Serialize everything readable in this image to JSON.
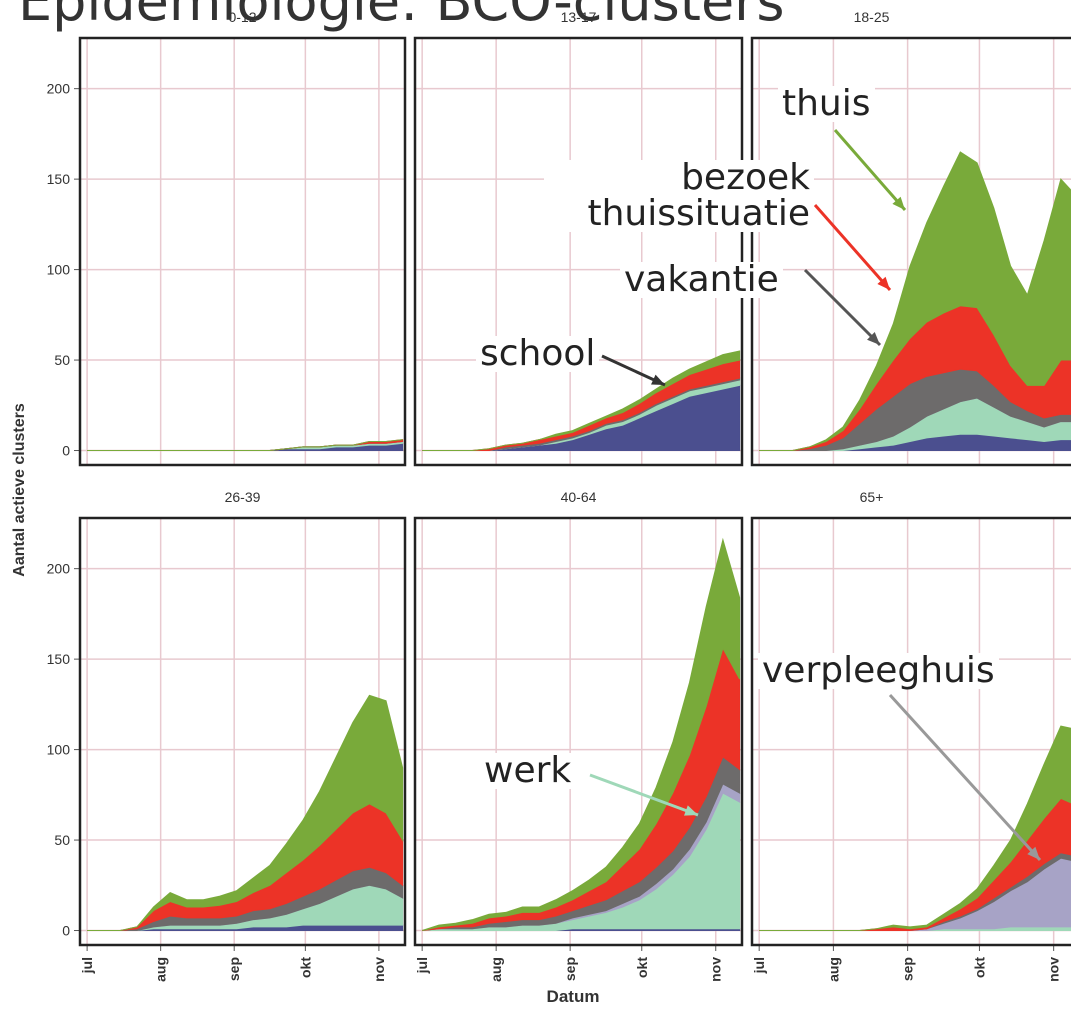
{
  "title": "Epidemiologie: BCO-clusters",
  "x_label": "Datum",
  "y_label": "Aantal actieve clusters",
  "chart_data": [
    {
      "type": "area",
      "title": "0-12",
      "x": [
        0,
        7,
        14,
        21,
        28,
        35,
        42,
        49,
        56,
        63,
        70,
        77,
        84,
        91,
        98,
        105,
        112,
        119,
        126,
        133
      ],
      "xlim": [
        -3,
        134
      ],
      "ylim": [
        -8,
        228
      ],
      "xticks": [
        0,
        31,
        62,
        92,
        123
      ],
      "yticks": [
        0,
        50,
        100,
        150,
        200
      ],
      "series": [
        {
          "name": "school",
          "color": "#4b4f8f",
          "values": [
            0,
            0,
            0,
            0,
            0,
            0,
            0,
            0,
            0,
            0,
            0,
            0,
            1,
            1,
            1,
            2,
            2,
            3,
            3,
            4
          ]
        },
        {
          "name": "werk",
          "color": "#9fd8b8",
          "values": [
            0,
            0,
            0,
            0,
            0,
            0,
            0,
            0,
            0,
            0,
            0,
            0,
            0,
            1,
            1,
            1,
            1,
            1,
            1,
            1
          ]
        },
        {
          "name": "verpleeghuis",
          "color": "#a7a3c6",
          "values": [
            0,
            0,
            0,
            0,
            0,
            0,
            0,
            0,
            0,
            0,
            0,
            0,
            0,
            0,
            0,
            0,
            0,
            0,
            0,
            0
          ]
        },
        {
          "name": "vakantie",
          "color": "#6d6b6b",
          "values": [
            0,
            0,
            0,
            0,
            0,
            0,
            0,
            0,
            0,
            0,
            0,
            0,
            0,
            0,
            0,
            0,
            0,
            0,
            0,
            0
          ]
        },
        {
          "name": "bezoek thuissituatie",
          "color": "#ec3327",
          "values": [
            0,
            0,
            0,
            0,
            0,
            0,
            0,
            0,
            0,
            0,
            0,
            0,
            0,
            0,
            0,
            0,
            0,
            1,
            1,
            1
          ]
        },
        {
          "name": "thuis",
          "color": "#79aa3a",
          "values": [
            0,
            0,
            0,
            0,
            0,
            0,
            0,
            0,
            0,
            0,
            0,
            0,
            0,
            0,
            0,
            0,
            0,
            0,
            0,
            0
          ]
        }
      ]
    },
    {
      "type": "area",
      "title": "13-17",
      "x": [
        0,
        7,
        14,
        21,
        28,
        35,
        42,
        49,
        56,
        63,
        70,
        77,
        84,
        91,
        98,
        105,
        112,
        119,
        126,
        133
      ],
      "xlim": [
        -3,
        134
      ],
      "ylim": [
        -8,
        228
      ],
      "xticks": [
        0,
        31,
        62,
        92,
        123
      ],
      "yticks": [
        0,
        50,
        100,
        150,
        200
      ],
      "series": [
        {
          "name": "school",
          "color": "#4b4f8f",
          "values": [
            0,
            0,
            0,
            0,
            0,
            1,
            2,
            3,
            4,
            6,
            9,
            12,
            14,
            18,
            22,
            26,
            30,
            32,
            34,
            36
          ]
        },
        {
          "name": "werk",
          "color": "#9fd8b8",
          "values": [
            0,
            0,
            0,
            0,
            0,
            0,
            0,
            0,
            1,
            1,
            1,
            2,
            2,
            2,
            3,
            3,
            3,
            3,
            3,
            3
          ]
        },
        {
          "name": "verpleeghuis",
          "color": "#a7a3c6",
          "values": [
            0,
            0,
            0,
            0,
            0,
            0,
            0,
            0,
            0,
            0,
            0,
            0,
            0,
            0,
            0,
            0,
            0,
            0,
            0,
            0
          ]
        },
        {
          "name": "vakantie",
          "color": "#6d6b6b",
          "values": [
            0,
            0,
            0,
            0,
            0,
            1,
            1,
            1,
            1,
            1,
            1,
            1,
            1,
            1,
            1,
            1,
            1,
            1,
            1,
            1
          ]
        },
        {
          "name": "bezoek thuissituatie",
          "color": "#ec3327",
          "values": [
            0,
            0,
            0,
            0,
            1,
            1,
            1,
            2,
            2,
            2,
            3,
            3,
            4,
            5,
            6,
            7,
            8,
            9,
            10,
            10
          ]
        },
        {
          "name": "thuis",
          "color": "#79aa3a",
          "values": [
            0,
            0,
            0,
            0,
            0,
            0,
            0,
            0,
            1,
            1,
            1,
            1,
            2,
            2,
            2,
            3,
            3,
            4,
            5,
            5
          ]
        }
      ]
    },
    {
      "type": "area",
      "title": "18-25",
      "x": [
        0,
        7,
        14,
        21,
        28,
        35,
        42,
        49,
        56,
        63,
        70,
        77,
        84,
        91,
        98,
        105,
        112,
        119,
        126,
        133
      ],
      "xlim": [
        -3,
        134
      ],
      "ylim": [
        -8,
        228
      ],
      "xticks": [
        0,
        31,
        62,
        92,
        123
      ],
      "yticks": [
        0,
        50,
        100,
        150,
        200
      ],
      "series": [
        {
          "name": "school",
          "color": "#4b4f8f",
          "values": [
            0,
            0,
            0,
            0,
            0,
            0,
            1,
            2,
            3,
            5,
            7,
            8,
            9,
            9,
            8,
            7,
            6,
            5,
            6,
            6
          ]
        },
        {
          "name": "werk",
          "color": "#9fd8b8",
          "values": [
            0,
            0,
            0,
            0,
            0,
            1,
            2,
            3,
            5,
            8,
            12,
            15,
            18,
            20,
            16,
            12,
            10,
            8,
            10,
            10
          ]
        },
        {
          "name": "verpleeghuis",
          "color": "#a7a3c6",
          "values": [
            0,
            0,
            0,
            0,
            0,
            0,
            0,
            0,
            0,
            0,
            0,
            0,
            0,
            0,
            0,
            0,
            0,
            0,
            0,
            0
          ]
        },
        {
          "name": "vakantie",
          "color": "#6d6b6b",
          "values": [
            0,
            0,
            0,
            1,
            3,
            6,
            12,
            18,
            22,
            24,
            22,
            20,
            18,
            15,
            12,
            8,
            6,
            5,
            4,
            4
          ]
        },
        {
          "name": "bezoek thuissituatie",
          "color": "#ec3327",
          "values": [
            0,
            0,
            0,
            1,
            2,
            4,
            8,
            14,
            20,
            25,
            30,
            33,
            35,
            35,
            28,
            20,
            14,
            18,
            30,
            30
          ]
        },
        {
          "name": "thuis",
          "color": "#79aa3a",
          "values": [
            0,
            0,
            0,
            0,
            1,
            2,
            5,
            10,
            20,
            40,
            55,
            70,
            85,
            80,
            70,
            55,
            50,
            80,
            100,
            90
          ]
        }
      ]
    },
    {
      "type": "area",
      "title": "26-39",
      "x": [
        0,
        7,
        14,
        21,
        28,
        35,
        42,
        49,
        56,
        63,
        70,
        77,
        84,
        91,
        98,
        105,
        112,
        119,
        126,
        133
      ],
      "xlim": [
        -3,
        134
      ],
      "ylim": [
        -8,
        228
      ],
      "xticks": [
        {
          "value": 0,
          "label": "jul"
        },
        {
          "value": 31,
          "label": "aug"
        },
        {
          "value": 62,
          "label": "sep"
        },
        {
          "value": 92,
          "label": "okt"
        },
        {
          "value": 123,
          "label": "nov"
        }
      ],
      "yticks": [
        0,
        50,
        100,
        150,
        200
      ],
      "series": [
        {
          "name": "school",
          "color": "#4b4f8f",
          "values": [
            0,
            0,
            0,
            0,
            1,
            1,
            1,
            1,
            1,
            1,
            2,
            2,
            2,
            3,
            3,
            3,
            3,
            3,
            3,
            3
          ]
        },
        {
          "name": "werk",
          "color": "#9fd8b8",
          "values": [
            0,
            0,
            0,
            0,
            1,
            2,
            2,
            2,
            2,
            3,
            4,
            5,
            7,
            9,
            12,
            16,
            20,
            22,
            20,
            15
          ]
        },
        {
          "name": "verpleeghuis",
          "color": "#a7a3c6",
          "values": [
            0,
            0,
            0,
            0,
            0,
            0,
            0,
            0,
            0,
            0,
            0,
            0,
            0,
            0,
            0,
            0,
            0,
            0,
            0,
            0
          ]
        },
        {
          "name": "vakantie",
          "color": "#6d6b6b",
          "values": [
            0,
            0,
            0,
            1,
            3,
            5,
            4,
            4,
            4,
            4,
            5,
            5,
            6,
            7,
            8,
            9,
            10,
            10,
            9,
            7
          ]
        },
        {
          "name": "bezoek thuissituatie",
          "color": "#ec3327",
          "values": [
            0,
            0,
            0,
            1,
            6,
            8,
            6,
            6,
            7,
            8,
            10,
            13,
            17,
            20,
            24,
            28,
            32,
            35,
            33,
            25
          ]
        },
        {
          "name": "thuis",
          "color": "#79aa3a",
          "values": [
            0,
            0,
            0,
            0,
            2,
            5,
            4,
            4,
            5,
            6,
            8,
            11,
            16,
            22,
            30,
            40,
            50,
            60,
            62,
            40
          ]
        }
      ]
    },
    {
      "type": "area",
      "title": "40-64",
      "x": [
        0,
        7,
        14,
        21,
        28,
        35,
        42,
        49,
        56,
        63,
        70,
        77,
        84,
        91,
        98,
        105,
        112,
        119,
        126,
        133
      ],
      "xlim": [
        -3,
        134
      ],
      "ylim": [
        -8,
        228
      ],
      "xticks": [
        {
          "value": 0,
          "label": "jul"
        },
        {
          "value": 31,
          "label": "aug"
        },
        {
          "value": 62,
          "label": "sep"
        },
        {
          "value": 92,
          "label": "okt"
        },
        {
          "value": 123,
          "label": "nov"
        }
      ],
      "yticks": [
        0,
        50,
        100,
        150,
        200
      ],
      "series": [
        {
          "name": "school",
          "color": "#4b4f8f",
          "values": [
            0,
            0,
            0,
            0,
            0,
            0,
            0,
            0,
            0,
            1,
            1,
            1,
            1,
            1,
            1,
            1,
            1,
            1,
            1,
            1
          ]
        },
        {
          "name": "werk",
          "color": "#9fd8b8",
          "values": [
            0,
            1,
            1,
            1,
            2,
            2,
            3,
            3,
            4,
            5,
            7,
            9,
            12,
            16,
            22,
            30,
            40,
            55,
            75,
            70
          ]
        },
        {
          "name": "verpleeghuis",
          "color": "#a7a3c6",
          "values": [
            0,
            0,
            0,
            0,
            0,
            0,
            0,
            0,
            0,
            1,
            1,
            1,
            2,
            2,
            3,
            3,
            4,
            4,
            5,
            5
          ]
        },
        {
          "name": "vakantie",
          "color": "#6d6b6b",
          "values": [
            0,
            0,
            1,
            1,
            2,
            3,
            3,
            3,
            4,
            4,
            5,
            6,
            7,
            8,
            9,
            10,
            12,
            14,
            15,
            13
          ]
        },
        {
          "name": "bezoek thuissituatie",
          "color": "#ec3327",
          "values": [
            0,
            1,
            1,
            2,
            3,
            3,
            4,
            4,
            5,
            6,
            8,
            10,
            14,
            18,
            24,
            32,
            40,
            50,
            60,
            50
          ]
        },
        {
          "name": "thuis",
          "color": "#79aa3a",
          "values": [
            0,
            1,
            1,
            2,
            2,
            2,
            3,
            3,
            4,
            5,
            6,
            8,
            10,
            14,
            20,
            28,
            40,
            55,
            60,
            45
          ]
        }
      ]
    },
    {
      "type": "area",
      "title": "65+",
      "x": [
        0,
        7,
        14,
        21,
        28,
        35,
        42,
        49,
        56,
        63,
        70,
        77,
        84,
        91,
        98,
        105,
        112,
        119,
        126,
        133
      ],
      "xlim": [
        -3,
        134
      ],
      "ylim": [
        -8,
        228
      ],
      "xticks": [
        {
          "value": 0,
          "label": "jul"
        },
        {
          "value": 31,
          "label": "aug"
        },
        {
          "value": 62,
          "label": "sep"
        },
        {
          "value": 92,
          "label": "okt"
        },
        {
          "value": 123,
          "label": "nov"
        }
      ],
      "yticks": [
        0,
        50,
        100,
        150,
        200
      ],
      "series": [
        {
          "name": "school",
          "color": "#4b4f8f",
          "values": [
            0,
            0,
            0,
            0,
            0,
            0,
            0,
            0,
            0,
            0,
            0,
            0,
            0,
            0,
            0,
            0,
            0,
            0,
            0,
            0
          ]
        },
        {
          "name": "werk",
          "color": "#9fd8b8",
          "values": [
            0,
            0,
            0,
            0,
            0,
            0,
            0,
            0,
            0,
            0,
            0,
            1,
            1,
            1,
            1,
            2,
            2,
            2,
            2,
            2
          ]
        },
        {
          "name": "verpleeghuis",
          "color": "#a7a3c6",
          "values": [
            0,
            0,
            0,
            0,
            0,
            0,
            0,
            0,
            0,
            0,
            1,
            3,
            6,
            10,
            15,
            20,
            25,
            32,
            38,
            36
          ]
        },
        {
          "name": "vakantie",
          "color": "#6d6b6b",
          "values": [
            0,
            0,
            0,
            0,
            0,
            0,
            0,
            0,
            0,
            0,
            0,
            1,
            1,
            1,
            2,
            2,
            3,
            3,
            3,
            3
          ]
        },
        {
          "name": "bezoek thuissituatie",
          "color": "#ec3327",
          "values": [
            0,
            0,
            0,
            0,
            0,
            0,
            0,
            1,
            2,
            1,
            1,
            2,
            4,
            6,
            10,
            14,
            20,
            25,
            30,
            28
          ]
        },
        {
          "name": "thuis",
          "color": "#79aa3a",
          "values": [
            0,
            0,
            0,
            0,
            0,
            0,
            0,
            0,
            1,
            1,
            1,
            2,
            3,
            5,
            8,
            12,
            20,
            30,
            40,
            42
          ]
        }
      ]
    }
  ]
}
